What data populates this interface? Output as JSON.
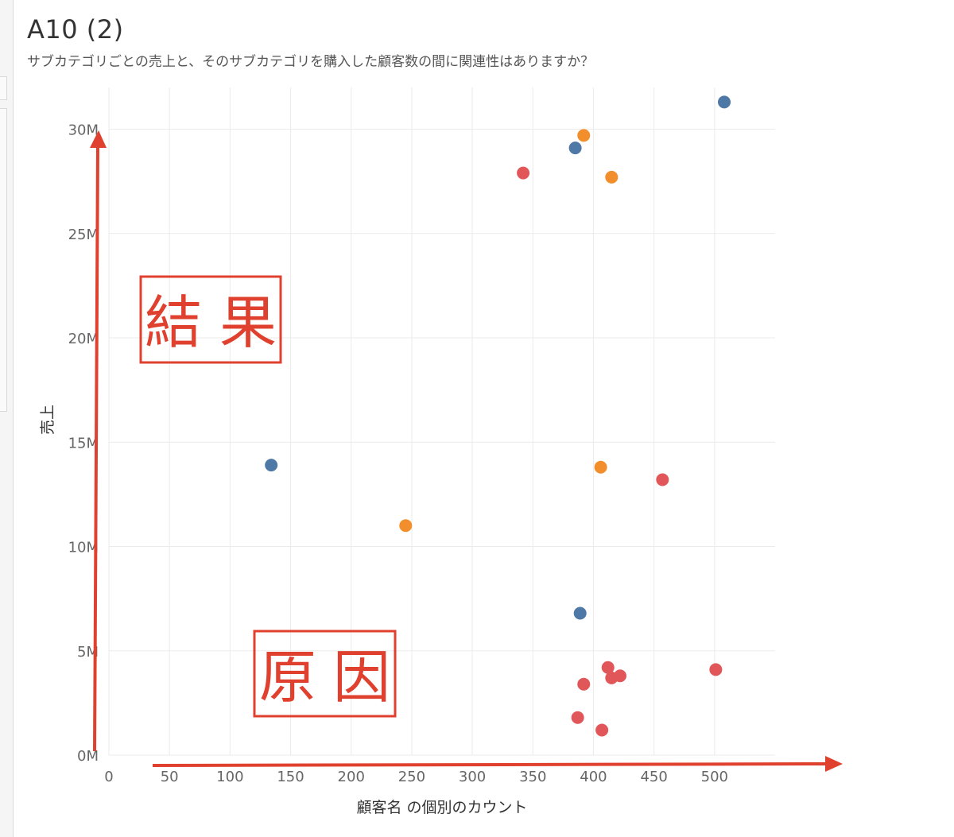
{
  "title": "A10 (2)",
  "subtitle": "サブカテゴリごとの売上と、そのサブカテゴリを購入した顧客数の間に関連性はありますか？",
  "annotations": {
    "result": "結果",
    "cause": "原因",
    "color": "#e0412f"
  },
  "chart_data": {
    "type": "scatter",
    "xlabel": "顧客名 の個別のカウント",
    "ylabel": "売上",
    "xlim": [
      0,
      550
    ],
    "ylim": [
      0,
      32000000
    ],
    "x_ticks": [
      {
        "value": 0,
        "label": "0"
      },
      {
        "value": 50,
        "label": "50"
      },
      {
        "value": 100,
        "label": "100"
      },
      {
        "value": 150,
        "label": "150"
      },
      {
        "value": 200,
        "label": "200"
      },
      {
        "value": 250,
        "label": "250"
      },
      {
        "value": 300,
        "label": "300"
      },
      {
        "value": 350,
        "label": "350"
      },
      {
        "value": 400,
        "label": "400"
      },
      {
        "value": 450,
        "label": "450"
      },
      {
        "value": 500,
        "label": "500"
      }
    ],
    "y_ticks": [
      {
        "value": 0,
        "label": "0M"
      },
      {
        "value": 5000000,
        "label": "5M"
      },
      {
        "value": 10000000,
        "label": "10M"
      },
      {
        "value": 15000000,
        "label": "15M"
      },
      {
        "value": 20000000,
        "label": "20M"
      },
      {
        "value": 25000000,
        "label": "25M"
      },
      {
        "value": 30000000,
        "label": "30M"
      }
    ],
    "grid": true,
    "series": [
      {
        "color": "#4e79a7",
        "points": [
          {
            "x": 134,
            "y": 13900000
          },
          {
            "x": 385,
            "y": 29100000
          },
          {
            "x": 389,
            "y": 6800000
          },
          {
            "x": 508,
            "y": 31300000
          }
        ]
      },
      {
        "color": "#f28e2b",
        "points": [
          {
            "x": 245,
            "y": 11000000
          },
          {
            "x": 392,
            "y": 29700000
          },
          {
            "x": 406,
            "y": 13800000
          },
          {
            "x": 415,
            "y": 27700000
          }
        ]
      },
      {
        "color": "#e15759",
        "points": [
          {
            "x": 342,
            "y": 27900000
          },
          {
            "x": 457,
            "y": 13200000
          },
          {
            "x": 387,
            "y": 1800000
          },
          {
            "x": 392,
            "y": 3400000
          },
          {
            "x": 407,
            "y": 1200000
          },
          {
            "x": 412,
            "y": 4200000
          },
          {
            "x": 415,
            "y": 3700000
          },
          {
            "x": 422,
            "y": 3800000
          },
          {
            "x": 501,
            "y": 4100000
          }
        ]
      }
    ]
  }
}
